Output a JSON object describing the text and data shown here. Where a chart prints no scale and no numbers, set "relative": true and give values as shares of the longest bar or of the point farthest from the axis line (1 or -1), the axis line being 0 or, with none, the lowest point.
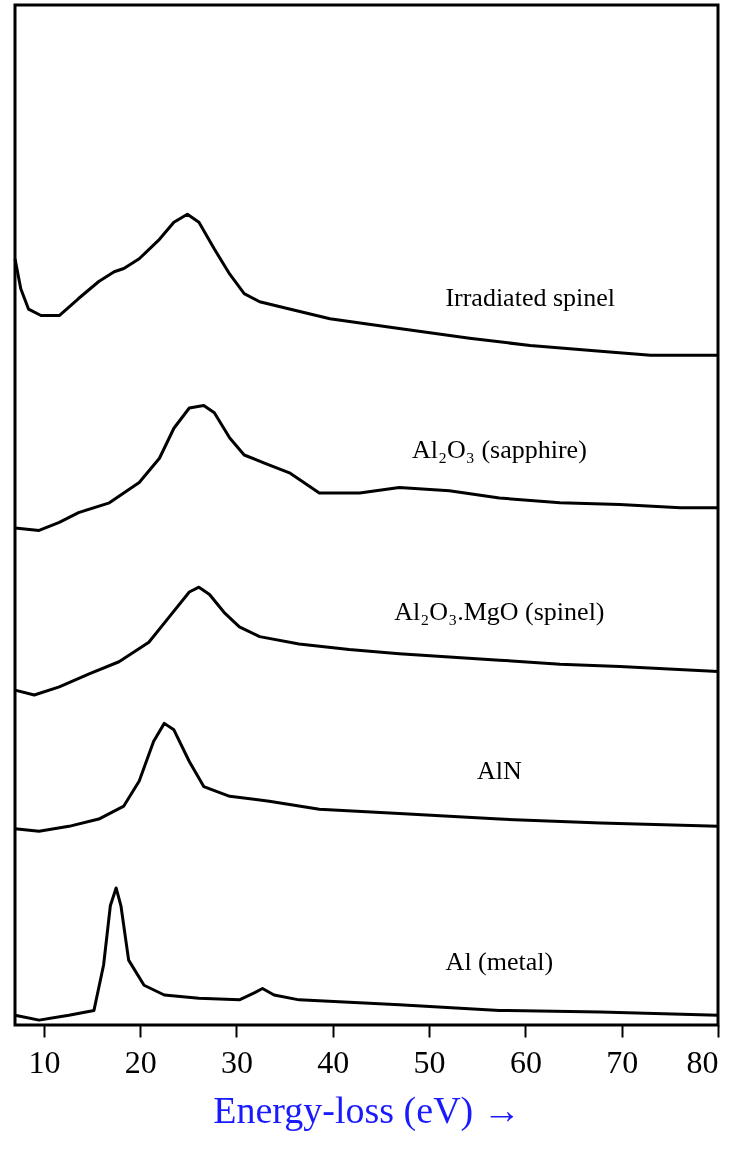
{
  "chart_data": {
    "type": "line",
    "relative": true,
    "xlabel": "Energy-loss (eV) →",
    "xlim": [
      7,
      80
    ],
    "xticks": [
      10,
      20,
      30,
      40,
      50,
      60,
      70,
      80
    ],
    "grid": false,
    "marker": "none",
    "line_style": "solid",
    "series": [
      {
        "name": "Irradiated spinel",
        "color": "#000000",
        "x": [
          7,
          7.6,
          8.4,
          9.7,
          11.6,
          13.6,
          15.7,
          17.3,
          18.3,
          19.9,
          22,
          23.5,
          24.9,
          26.1,
          27.7,
          29.3,
          30.8,
          32.4,
          35.5,
          39.7,
          46.9,
          54.2,
          60.5,
          67.8,
          73,
          80
        ],
        "values": [
          0.945,
          0.908,
          0.883,
          0.875,
          0.875,
          0.896,
          0.917,
          0.929,
          0.933,
          0.945,
          0.969,
          0.99,
          1,
          0.99,
          0.957,
          0.926,
          0.902,
          0.892,
          0.883,
          0.871,
          0.859,
          0.847,
          0.838,
          0.831,
          0.826,
          0.826
        ]
      },
      {
        "name": "Al₂O₃  (sapphire)",
        "color": "#000000",
        "x": [
          7,
          9.5,
          11.6,
          13.6,
          16.8,
          19.9,
          22,
          23.5,
          25.1,
          26.6,
          27.7,
          29.3,
          30.8,
          32.9,
          35.5,
          38.6,
          42.8,
          46.9,
          52.1,
          57.3,
          63.6,
          69.8,
          76.1,
          80
        ],
        "values": [
          0.613,
          0.61,
          0.62,
          0.632,
          0.644,
          0.669,
          0.699,
          0.736,
          0.761,
          0.764,
          0.755,
          0.724,
          0.703,
          0.693,
          0.681,
          0.656,
          0.656,
          0.663,
          0.659,
          0.65,
          0.644,
          0.642,
          0.638,
          0.638
        ]
      },
      {
        "name": "Al₂O₃.MgO (spinel)",
        "color": "#000000",
        "x": [
          7,
          9,
          11.6,
          14.7,
          17.8,
          20.9,
          23,
          25.1,
          26.1,
          27.2,
          28.7,
          30.3,
          32.4,
          36.5,
          41.7,
          46.9,
          52.1,
          57.3,
          63.6,
          69.8,
          80
        ],
        "values": [
          0.413,
          0.407,
          0.417,
          0.433,
          0.448,
          0.472,
          0.503,
          0.534,
          0.54,
          0.531,
          0.509,
          0.491,
          0.479,
          0.47,
          0.463,
          0.458,
          0.454,
          0.45,
          0.445,
          0.442,
          0.436
        ]
      },
      {
        "name": "AlN",
        "color": "#000000",
        "x": [
          7,
          9.5,
          12.6,
          15.7,
          18.3,
          19.9,
          21.4,
          22.5,
          23.5,
          25.1,
          26.6,
          29.3,
          33.4,
          38.6,
          46.9,
          57.3,
          67.8,
          80
        ],
        "values": [
          0.242,
          0.239,
          0.245,
          0.254,
          0.27,
          0.301,
          0.35,
          0.372,
          0.364,
          0.325,
          0.294,
          0.282,
          0.276,
          0.266,
          0.261,
          0.254,
          0.249,
          0.245
        ]
      },
      {
        "name": "Al (metal)",
        "color": "#000000",
        "x": [
          7,
          9.5,
          12.6,
          15.2,
          16.2,
          16.9,
          17.5,
          18,
          18.8,
          20.4,
          22.5,
          26.1,
          30.3,
          31.9,
          32.7,
          33.9,
          36.5,
          46.9,
          57.3,
          67.8,
          80
        ],
        "values": [
          0.012,
          0.006,
          0.012,
          0.018,
          0.074,
          0.147,
          0.169,
          0.147,
          0.08,
          0.049,
          0.037,
          0.033,
          0.031,
          0.04,
          0.045,
          0.037,
          0.031,
          0.025,
          0.018,
          0.016,
          0.012
        ]
      }
    ]
  }
}
